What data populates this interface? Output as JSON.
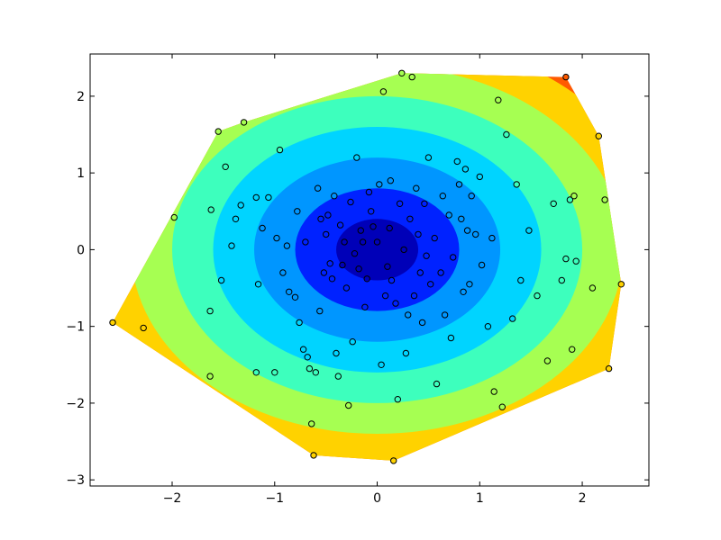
{
  "chart_data": {
    "type": "contour",
    "title": "",
    "xlabel": "",
    "ylabel": "",
    "xlim": [
      -2.8,
      2.65
    ],
    "ylim": [
      -3.08,
      2.55
    ],
    "x_ticks": [
      -2,
      -1,
      0,
      1,
      2
    ],
    "y_ticks": [
      -3,
      -2,
      -1,
      0,
      1,
      2
    ],
    "x_tick_labels": [
      "−2",
      "−1",
      "0",
      "1",
      "2"
    ],
    "y_tick_labels": [
      "−3",
      "−2",
      "−1",
      "0",
      "1",
      "2"
    ],
    "grid": false,
    "legend": "none",
    "surface": "z = sqrt(x^2 + y^2), filled inside the convex hull of the sample points",
    "colormap": "jet",
    "contour_levels": [
      0.0,
      0.4,
      0.8,
      1.2,
      1.6,
      2.0,
      2.4,
      2.8,
      3.2
    ],
    "level_colors": [
      "#0000b8",
      "#0022ff",
      "#0096ff",
      "#00d4ff",
      "#3dffbd",
      "#a6ff52",
      "#ffd200",
      "#ff5a00",
      "#c80000"
    ],
    "points": [
      [
        -2.58,
        -0.95
      ],
      [
        -2.28,
        -1.02
      ],
      [
        -1.98,
        0.42
      ],
      [
        -1.63,
        -1.65
      ],
      [
        -1.63,
        -0.8
      ],
      [
        -1.62,
        0.52
      ],
      [
        -1.55,
        1.54
      ],
      [
        -1.52,
        -0.4
      ],
      [
        -1.48,
        1.08
      ],
      [
        -1.42,
        0.05
      ],
      [
        -1.38,
        0.4
      ],
      [
        -1.33,
        0.58
      ],
      [
        -1.3,
        1.66
      ],
      [
        -1.18,
        0.68
      ],
      [
        -1.18,
        -1.6
      ],
      [
        -1.16,
        -0.45
      ],
      [
        -1.12,
        0.28
      ],
      [
        -1.06,
        0.68
      ],
      [
        -1.0,
        -1.6
      ],
      [
        -0.98,
        0.15
      ],
      [
        -0.95,
        1.3
      ],
      [
        -0.92,
        -0.3
      ],
      [
        -0.88,
        0.05
      ],
      [
        -0.86,
        -0.55
      ],
      [
        -0.8,
        -0.62
      ],
      [
        -0.78,
        0.5
      ],
      [
        -0.76,
        -0.95
      ],
      [
        -0.72,
        -1.3
      ],
      [
        -0.7,
        0.1
      ],
      [
        -0.68,
        -1.4
      ],
      [
        -0.66,
        -1.55
      ],
      [
        -0.64,
        -2.27
      ],
      [
        -0.62,
        -2.68
      ],
      [
        -0.6,
        -1.6
      ],
      [
        -0.58,
        0.8
      ],
      [
        -0.56,
        -0.8
      ],
      [
        -0.55,
        0.4
      ],
      [
        -0.52,
        -0.3
      ],
      [
        -0.5,
        0.2
      ],
      [
        -0.48,
        0.45
      ],
      [
        -0.46,
        -0.18
      ],
      [
        -0.44,
        -0.38
      ],
      [
        -0.42,
        0.7
      ],
      [
        -0.4,
        -1.35
      ],
      [
        -0.38,
        -1.65
      ],
      [
        -0.36,
        0.32
      ],
      [
        -0.34,
        -0.2
      ],
      [
        -0.32,
        0.1
      ],
      [
        -0.3,
        -0.5
      ],
      [
        -0.28,
        -2.03
      ],
      [
        -0.26,
        0.62
      ],
      [
        -0.24,
        -1.2
      ],
      [
        -0.22,
        -0.05
      ],
      [
        -0.2,
        1.2
      ],
      [
        -0.18,
        -0.25
      ],
      [
        -0.16,
        0.25
      ],
      [
        -0.14,
        0.1
      ],
      [
        -0.12,
        -0.75
      ],
      [
        -0.1,
        -0.38
      ],
      [
        -0.08,
        0.75
      ],
      [
        -0.06,
        0.5
      ],
      [
        -0.04,
        0.3
      ],
      [
        0.0,
        0.1
      ],
      [
        0.02,
        0.85
      ],
      [
        0.04,
        -1.5
      ],
      [
        0.06,
        2.06
      ],
      [
        0.08,
        -0.6
      ],
      [
        0.1,
        -0.22
      ],
      [
        0.12,
        0.28
      ],
      [
        0.13,
        0.9
      ],
      [
        0.14,
        -0.4
      ],
      [
        0.16,
        -2.75
      ],
      [
        0.18,
        -0.7
      ],
      [
        0.2,
        -1.95
      ],
      [
        0.22,
        0.6
      ],
      [
        0.24,
        2.3
      ],
      [
        0.26,
        0.0
      ],
      [
        0.28,
        -1.35
      ],
      [
        0.3,
        -0.85
      ],
      [
        0.32,
        0.4
      ],
      [
        0.34,
        2.25
      ],
      [
        0.36,
        -0.6
      ],
      [
        0.38,
        0.8
      ],
      [
        0.4,
        0.2
      ],
      [
        0.42,
        -0.3
      ],
      [
        0.44,
        -0.95
      ],
      [
        0.46,
        0.6
      ],
      [
        0.48,
        -0.08
      ],
      [
        0.5,
        1.2
      ],
      [
        0.52,
        -0.45
      ],
      [
        0.56,
        0.15
      ],
      [
        0.58,
        -1.75
      ],
      [
        0.62,
        -0.3
      ],
      [
        0.64,
        0.7
      ],
      [
        0.66,
        -0.85
      ],
      [
        0.7,
        0.45
      ],
      [
        0.72,
        -1.15
      ],
      [
        0.74,
        -0.1
      ],
      [
        0.78,
        1.15
      ],
      [
        0.8,
        0.85
      ],
      [
        0.82,
        0.4
      ],
      [
        0.84,
        -0.55
      ],
      [
        0.86,
        1.05
      ],
      [
        0.88,
        0.25
      ],
      [
        0.9,
        -0.45
      ],
      [
        0.92,
        0.7
      ],
      [
        0.96,
        0.2
      ],
      [
        1.0,
        0.95
      ],
      [
        1.02,
        -0.2
      ],
      [
        1.08,
        -1.0
      ],
      [
        1.12,
        0.15
      ],
      [
        1.14,
        -1.85
      ],
      [
        1.18,
        1.95
      ],
      [
        1.22,
        -2.05
      ],
      [
        1.26,
        1.5
      ],
      [
        1.32,
        -0.9
      ],
      [
        1.36,
        0.85
      ],
      [
        1.4,
        -0.4
      ],
      [
        1.48,
        0.25
      ],
      [
        1.56,
        -0.6
      ],
      [
        1.66,
        -1.45
      ],
      [
        1.72,
        0.6
      ],
      [
        1.8,
        -0.4
      ],
      [
        1.84,
        2.25
      ],
      [
        1.88,
        0.65
      ],
      [
        1.9,
        -1.3
      ],
      [
        1.92,
        0.7
      ],
      [
        1.94,
        -0.15
      ],
      [
        2.1,
        -0.5
      ],
      [
        2.16,
        1.48
      ],
      [
        2.22,
        0.65
      ],
      [
        2.26,
        -1.55
      ],
      [
        2.38,
        -0.45
      ],
      [
        1.84,
        -0.12
      ]
    ]
  }
}
